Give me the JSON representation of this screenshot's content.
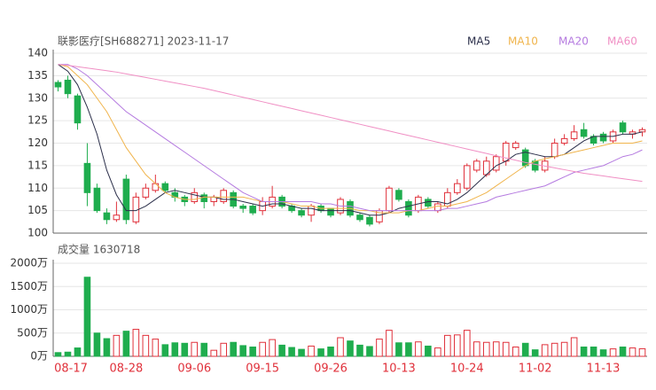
{
  "chart_data": [
    {
      "type": "candlestick",
      "title": "联影医疗[SH688271] 2023-11-17",
      "open": [
        133.5,
        134,
        130.5,
        115.5,
        110,
        104.5,
        103,
        112,
        102.5,
        108,
        109.5,
        111,
        109,
        108,
        107,
        108.5,
        107,
        107,
        109,
        106,
        106,
        105,
        106,
        108,
        106,
        105,
        104,
        106,
        105.5,
        104.5,
        107,
        104,
        103.5,
        102.5,
        105,
        109.5,
        107,
        105,
        107.5,
        105,
        106,
        109,
        110,
        114,
        113,
        114,
        116,
        119,
        118.5,
        116,
        114,
        117,
        120,
        121,
        123,
        121.5,
        122,
        120.5,
        124.5,
        122,
        122.5
      ],
      "high": [
        134,
        135,
        131,
        120,
        111,
        105.5,
        107,
        113,
        109,
        111,
        113,
        111.5,
        110,
        108.5,
        110,
        109,
        108.5,
        110,
        109.5,
        106.5,
        106.5,
        108,
        110.5,
        108.5,
        106.5,
        105.5,
        106.5,
        106.5,
        105.5,
        108,
        107.5,
        104.5,
        104,
        105.5,
        110.5,
        110,
        107.5,
        108.5,
        108,
        107,
        110,
        112,
        115.5,
        116.5,
        117,
        117.5,
        120.5,
        120.5,
        119,
        116.5,
        117,
        121,
        122,
        124,
        124.5,
        122,
        122.5,
        123,
        125,
        123,
        123.5
      ],
      "low": [
        131.5,
        130,
        123,
        106,
        104.5,
        102,
        102.5,
        102,
        102,
        107.5,
        109,
        109,
        107,
        106,
        106.5,
        105.5,
        106,
        106.5,
        105.5,
        104.5,
        104,
        104,
        105.5,
        105.5,
        104.5,
        103.5,
        102.5,
        104.5,
        103.5,
        104,
        103.5,
        102.5,
        101.5,
        102,
        104.5,
        107,
        103.5,
        104.5,
        105.5,
        104.5,
        105.5,
        108.5,
        109.5,
        113.5,
        112.5,
        113.5,
        115,
        118.5,
        114.5,
        113.5,
        113.5,
        116.5,
        119.5,
        120.5,
        121,
        119.5,
        120,
        120,
        122,
        121,
        121.5
      ],
      "close": [
        132.5,
        131,
        124.5,
        109,
        105,
        103,
        104,
        103,
        108,
        110,
        111,
        109.5,
        108,
        107,
        109,
        107,
        108,
        109.5,
        106,
        105.5,
        104.5,
        107,
        108,
        106,
        105,
        104,
        106,
        105,
        104,
        107.5,
        104,
        103,
        102,
        105,
        110,
        107.5,
        104,
        108,
        106,
        106.5,
        109,
        111,
        115,
        116,
        116,
        117,
        120,
        120,
        115,
        114,
        116,
        120,
        121,
        122.5,
        121.5,
        120,
        120.5,
        122.5,
        122.5,
        122.5,
        123
      ],
      "up_color": "#e0313b",
      "down_color": "#1fad4e",
      "ylim": [
        100,
        140
      ],
      "yticks": [
        100,
        105,
        110,
        115,
        120,
        125,
        130,
        135,
        140
      ],
      "grid": true,
      "legend": "top-right",
      "series": [
        {
          "name": "MA5",
          "color": "#2b2f4a",
          "values": [
            137.5,
            136,
            133,
            128,
            122,
            114,
            108.5,
            105,
            105,
            106,
            107.5,
            109,
            109.5,
            109,
            108.5,
            108,
            108,
            107.5,
            107.5,
            107,
            106.5,
            106,
            106.5,
            106.5,
            106,
            105.5,
            105.5,
            105,
            105,
            105,
            105,
            104.5,
            104,
            104,
            104.5,
            105.5,
            106,
            106.5,
            107,
            107,
            106.5,
            107.5,
            109,
            111,
            113,
            115,
            116,
            117.5,
            118,
            117.5,
            117,
            117,
            117.5,
            119,
            120.5,
            121.5,
            121.5,
            121.5,
            122,
            122,
            122.5
          ]
        },
        {
          "name": "MA10",
          "color": "#f0b44c",
          "values": [
            137.5,
            137,
            135,
            133,
            130,
            127,
            123,
            119,
            116,
            113,
            111,
            109,
            108,
            107.5,
            107.5,
            108,
            108,
            108,
            108,
            108,
            107.5,
            107,
            107,
            107,
            106.5,
            106,
            106,
            105.5,
            105.5,
            105.5,
            105.5,
            105,
            105,
            104.5,
            104.5,
            104.5,
            105,
            105,
            105.5,
            106,
            106,
            106.5,
            107,
            108,
            109,
            110.5,
            112,
            113.5,
            115,
            116,
            116.5,
            117,
            117.5,
            118,
            118.5,
            119,
            119.5,
            120,
            120,
            120,
            120.5
          ]
        },
        {
          "name": "MA20",
          "color": "#b57be0",
          "values": [
            137.5,
            137.5,
            136.5,
            135,
            133,
            131,
            129,
            127,
            125.5,
            124,
            122.5,
            121,
            119.5,
            118,
            116.5,
            115,
            113.5,
            112,
            110.5,
            109,
            108,
            107,
            107,
            107,
            107,
            107,
            107,
            106.5,
            106.5,
            106,
            106,
            105.5,
            105,
            105,
            105,
            105,
            105,
            105,
            105,
            105,
            105.5,
            105.5,
            106,
            106.5,
            107,
            108,
            108.5,
            109,
            109.5,
            110,
            110.5,
            111.5,
            112.5,
            113.5,
            114,
            114.5,
            115,
            116,
            117,
            117.5,
            118.5
          ]
        },
        {
          "name": "MA60",
          "color": "#f08fc4",
          "values": [
            137.5,
            137.3,
            137.0,
            136.7,
            136.4,
            136.1,
            135.8,
            135.4,
            135.0,
            134.6,
            134.2,
            133.8,
            133.4,
            133.0,
            132.6,
            132.2,
            131.7,
            131.2,
            130.7,
            130.2,
            129.7,
            129.2,
            128.7,
            128.2,
            127.7,
            127.2,
            126.7,
            126.2,
            125.7,
            125.2,
            124.7,
            124.2,
            123.7,
            123.2,
            122.7,
            122.2,
            121.7,
            121.2,
            120.7,
            120.2,
            119.7,
            119.2,
            118.7,
            118.2,
            117.7,
            117.2,
            116.7,
            116.2,
            115.7,
            115.3,
            114.9,
            114.5,
            114.1,
            113.7,
            113.3,
            113.0,
            112.7,
            112.4,
            112.1,
            111.8,
            111.5
          ]
        }
      ]
    },
    {
      "type": "bar",
      "title": "成交量 1630718",
      "categories": [
        "08-17",
        null,
        null,
        null,
        null,
        null,
        null,
        "08-28",
        null,
        null,
        null,
        null,
        null,
        null,
        "09-06",
        null,
        null,
        null,
        null,
        null,
        null,
        "09-15",
        null,
        null,
        null,
        null,
        null,
        null,
        "09-26",
        null,
        null,
        null,
        null,
        null,
        null,
        "10-13",
        null,
        null,
        null,
        null,
        null,
        null,
        "10-24",
        null,
        null,
        null,
        null,
        null,
        null,
        "11-02",
        null,
        null,
        null,
        null,
        null,
        null,
        "11-13",
        null,
        null,
        null,
        null
      ],
      "values": [
        80,
        90,
        180,
        1700,
        500,
        380,
        450,
        540,
        580,
        450,
        370,
        250,
        290,
        280,
        300,
        280,
        130,
        280,
        300,
        230,
        200,
        300,
        360,
        240,
        190,
        150,
        220,
        160,
        200,
        400,
        330,
        240,
        210,
        370,
        560,
        290,
        290,
        310,
        220,
        180,
        450,
        460,
        560,
        310,
        300,
        310,
        300,
        200,
        280,
        140,
        250,
        280,
        300,
        400,
        200,
        200,
        140,
        160,
        200,
        180,
        163
      ],
      "ylim": [
        0,
        2000
      ],
      "yticks": [
        {
          "value": 0,
          "label": "0万"
        },
        {
          "value": 500,
          "label": "500万"
        },
        {
          "value": 1000,
          "label": "1000万"
        },
        {
          "value": 1500,
          "label": "1500万"
        },
        {
          "value": 2000,
          "label": "2000万"
        }
      ],
      "grid": true
    }
  ]
}
